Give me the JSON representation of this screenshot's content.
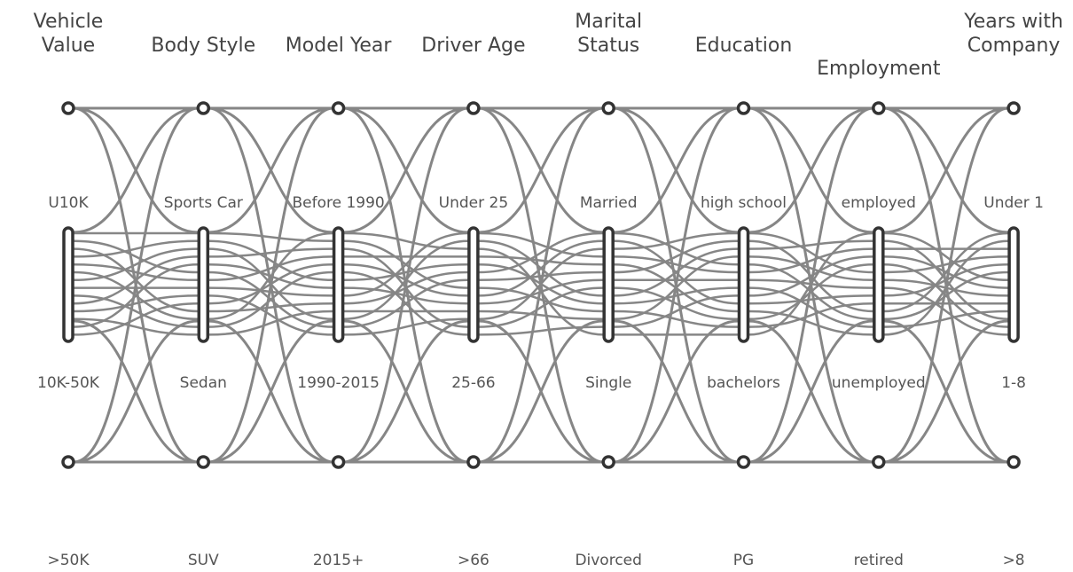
{
  "axes": [
    {
      "title": [
        "Vehicle",
        "Value"
      ],
      "categories": [
        "U10K",
        "10K-50K",
        ">50K"
      ]
    },
    {
      "title": [
        "Body Style"
      ],
      "categories": [
        "Sports Car",
        "Sedan",
        "SUV"
      ]
    },
    {
      "title": [
        "Model Year"
      ],
      "categories": [
        "Before 1990",
        "1990-2015",
        "2015+"
      ]
    },
    {
      "title": [
        "Driver Age"
      ],
      "categories": [
        "Under 25",
        "25-66",
        ">66"
      ]
    },
    {
      "title": [
        "Marital",
        "Status"
      ],
      "categories": [
        "Married",
        "Single",
        "Divorced"
      ]
    },
    {
      "title": [
        "Education"
      ],
      "categories": [
        "high school",
        "bachelors",
        "PG"
      ]
    },
    {
      "title": [
        "Employment"
      ],
      "categories": [
        "employed",
        "unemployed",
        "retired"
      ]
    },
    {
      "title": [
        "Years with",
        "Company"
      ],
      "categories": [
        "Under 1",
        "1-8",
        ">8"
      ]
    }
  ]
}
